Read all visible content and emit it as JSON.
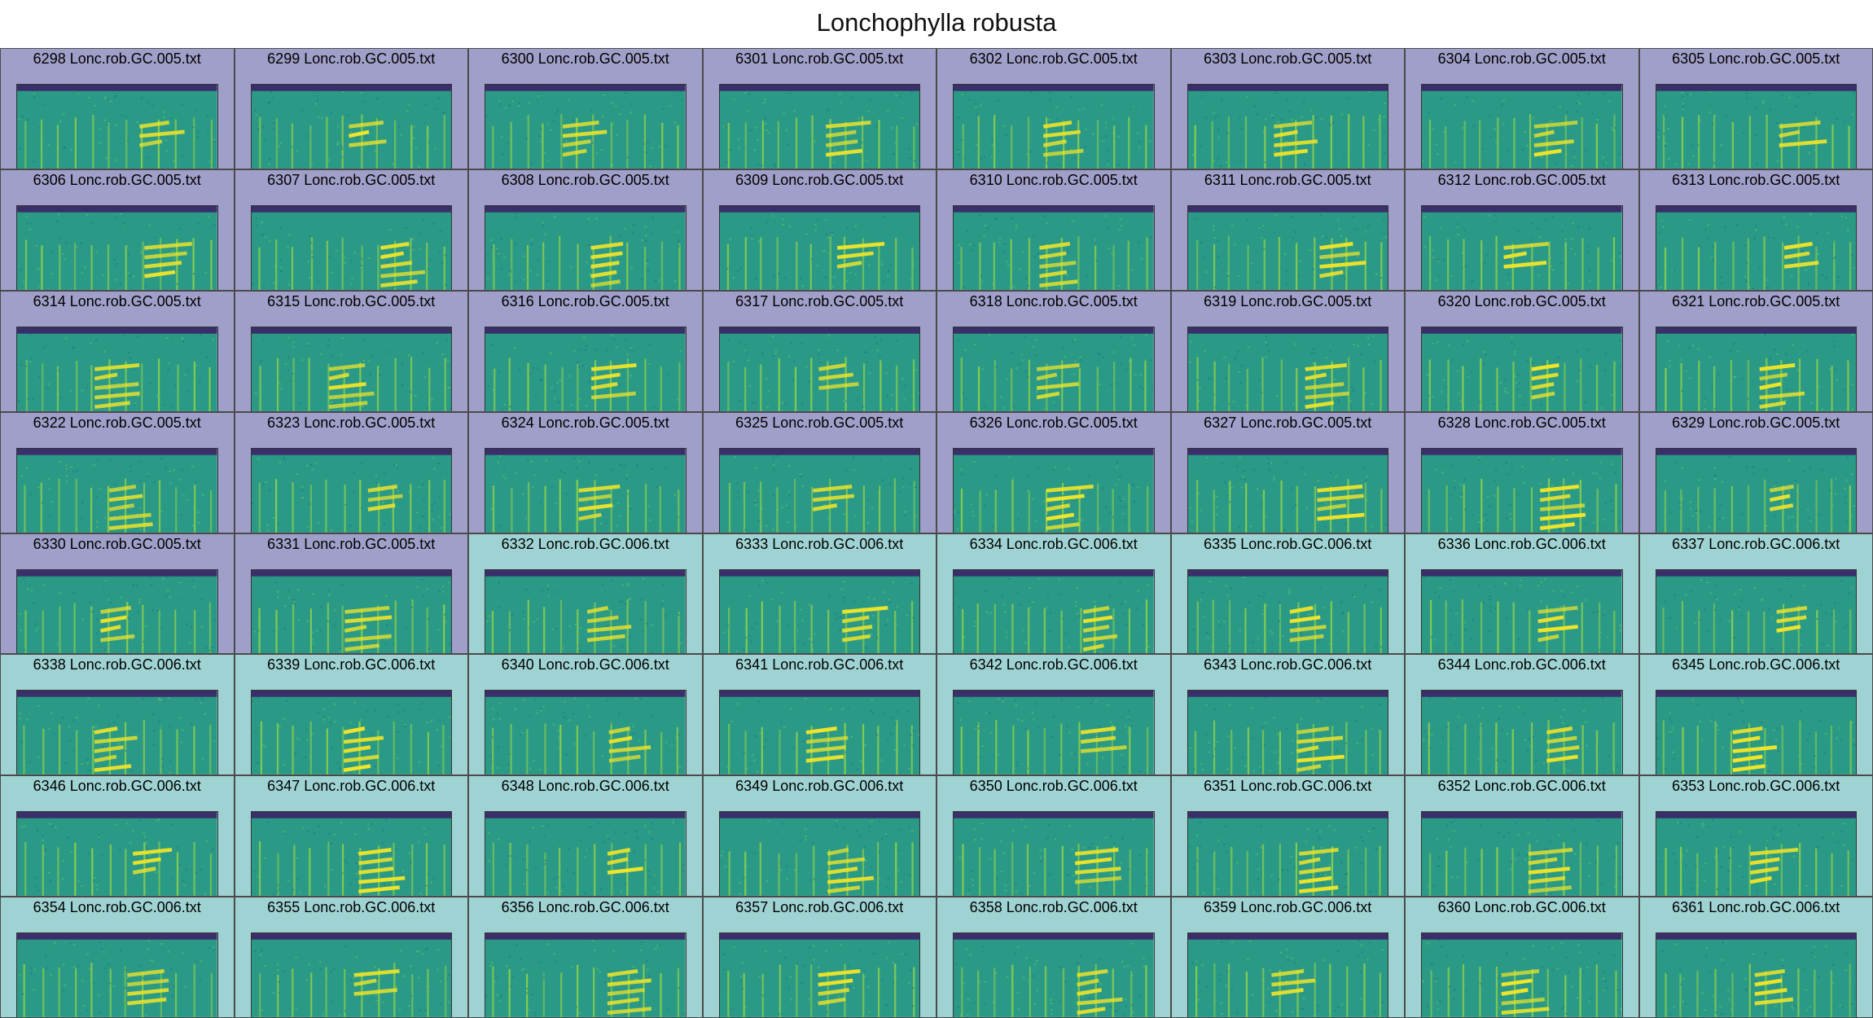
{
  "title": "Lonchophylla robusta",
  "colors": {
    "group_005_bg": "#a09fc9",
    "group_006_bg": "#9fd3d3",
    "spec_bg": "#2a9a86",
    "spec_top": "#3a2f6b",
    "spec_line": "#8fd04a",
    "spec_call": "#f0e52a"
  },
  "tiles": [
    {
      "label": "6298 Lonc.rob.GC.005.txt",
      "group": "005"
    },
    {
      "label": "6299 Lonc.rob.GC.005.txt",
      "group": "005"
    },
    {
      "label": "6300 Lonc.rob.GC.005.txt",
      "group": "005"
    },
    {
      "label": "6301 Lonc.rob.GC.005.txt",
      "group": "005"
    },
    {
      "label": "6302 Lonc.rob.GC.005.txt",
      "group": "005"
    },
    {
      "label": "6303 Lonc.rob.GC.005.txt",
      "group": "005"
    },
    {
      "label": "6304 Lonc.rob.GC.005.txt",
      "group": "005"
    },
    {
      "label": "6305 Lonc.rob.GC.005.txt",
      "group": "005"
    },
    {
      "label": "6306 Lonc.rob.GC.005.txt",
      "group": "005"
    },
    {
      "label": "6307 Lonc.rob.GC.005.txt",
      "group": "005"
    },
    {
      "label": "6308 Lonc.rob.GC.005.txt",
      "group": "005"
    },
    {
      "label": "6309 Lonc.rob.GC.005.txt",
      "group": "005"
    },
    {
      "label": "6310 Lonc.rob.GC.005.txt",
      "group": "005"
    },
    {
      "label": "6311 Lonc.rob.GC.005.txt",
      "group": "005"
    },
    {
      "label": "6312 Lonc.rob.GC.005.txt",
      "group": "005"
    },
    {
      "label": "6313 Lonc.rob.GC.005.txt",
      "group": "005"
    },
    {
      "label": "6314 Lonc.rob.GC.005.txt",
      "group": "005"
    },
    {
      "label": "6315 Lonc.rob.GC.005.txt",
      "group": "005"
    },
    {
      "label": "6316 Lonc.rob.GC.005.txt",
      "group": "005"
    },
    {
      "label": "6317 Lonc.rob.GC.005.txt",
      "group": "005"
    },
    {
      "label": "6318 Lonc.rob.GC.005.txt",
      "group": "005"
    },
    {
      "label": "6319 Lonc.rob.GC.005.txt",
      "group": "005"
    },
    {
      "label": "6320 Lonc.rob.GC.005.txt",
      "group": "005"
    },
    {
      "label": "6321 Lonc.rob.GC.005.txt",
      "group": "005"
    },
    {
      "label": "6322 Lonc.rob.GC.005.txt",
      "group": "005"
    },
    {
      "label": "6323 Lonc.rob.GC.005.txt",
      "group": "005"
    },
    {
      "label": "6324 Lonc.rob.GC.005.txt",
      "group": "005"
    },
    {
      "label": "6325 Lonc.rob.GC.005.txt",
      "group": "005"
    },
    {
      "label": "6326 Lonc.rob.GC.005.txt",
      "group": "005"
    },
    {
      "label": "6327 Lonc.rob.GC.005.txt",
      "group": "005"
    },
    {
      "label": "6328 Lonc.rob.GC.005.txt",
      "group": "005"
    },
    {
      "label": "6329 Lonc.rob.GC.005.txt",
      "group": "005"
    },
    {
      "label": "6330 Lonc.rob.GC.005.txt",
      "group": "005"
    },
    {
      "label": "6331 Lonc.rob.GC.005.txt",
      "group": "005"
    },
    {
      "label": "6332 Lonc.rob.GC.006.txt",
      "group": "006"
    },
    {
      "label": "6333 Lonc.rob.GC.006.txt",
      "group": "006"
    },
    {
      "label": "6334 Lonc.rob.GC.006.txt",
      "group": "006"
    },
    {
      "label": "6335 Lonc.rob.GC.006.txt",
      "group": "006"
    },
    {
      "label": "6336 Lonc.rob.GC.006.txt",
      "group": "006"
    },
    {
      "label": "6337 Lonc.rob.GC.006.txt",
      "group": "006"
    },
    {
      "label": "6338 Lonc.rob.GC.006.txt",
      "group": "006"
    },
    {
      "label": "6339 Lonc.rob.GC.006.txt",
      "group": "006"
    },
    {
      "label": "6340 Lonc.rob.GC.006.txt",
      "group": "006"
    },
    {
      "label": "6341 Lonc.rob.GC.006.txt",
      "group": "006"
    },
    {
      "label": "6342 Lonc.rob.GC.006.txt",
      "group": "006"
    },
    {
      "label": "6343 Lonc.rob.GC.006.txt",
      "group": "006"
    },
    {
      "label": "6344 Lonc.rob.GC.006.txt",
      "group": "006"
    },
    {
      "label": "6345 Lonc.rob.GC.006.txt",
      "group": "006"
    },
    {
      "label": "6346 Lonc.rob.GC.006.txt",
      "group": "006"
    },
    {
      "label": "6347 Lonc.rob.GC.006.txt",
      "group": "006"
    },
    {
      "label": "6348 Lonc.rob.GC.006.txt",
      "group": "006"
    },
    {
      "label": "6349 Lonc.rob.GC.006.txt",
      "group": "006"
    },
    {
      "label": "6350 Lonc.rob.GC.006.txt",
      "group": "006"
    },
    {
      "label": "6351 Lonc.rob.GC.006.txt",
      "group": "006"
    },
    {
      "label": "6352 Lonc.rob.GC.006.txt",
      "group": "006"
    },
    {
      "label": "6353 Lonc.rob.GC.006.txt",
      "group": "006"
    },
    {
      "label": "6354 Lonc.rob.GC.006.txt",
      "group": "006"
    },
    {
      "label": "6355 Lonc.rob.GC.006.txt",
      "group": "006"
    },
    {
      "label": "6356 Lonc.rob.GC.006.txt",
      "group": "006"
    },
    {
      "label": "6357 Lonc.rob.GC.006.txt",
      "group": "006"
    },
    {
      "label": "6358 Lonc.rob.GC.006.txt",
      "group": "006"
    },
    {
      "label": "6359 Lonc.rob.GC.006.txt",
      "group": "006"
    },
    {
      "label": "6360 Lonc.rob.GC.006.txt",
      "group": "006"
    },
    {
      "label": "6361 Lonc.rob.GC.006.txt",
      "group": "006"
    }
  ]
}
